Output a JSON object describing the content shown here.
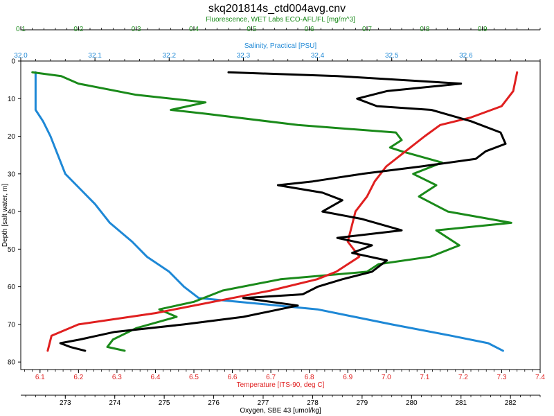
{
  "chart_data": {
    "type": "line",
    "title": "skq201814s_ctd004avg.cnv",
    "y_axis": {
      "label": "Depth [salt water, m]",
      "range": [
        0,
        82
      ],
      "ticks": [
        "0",
        "10",
        "20",
        "30",
        "40",
        "50",
        "60",
        "70",
        "80"
      ],
      "inverted": true
    },
    "axes": [
      {
        "key": "fluorescence",
        "label": "Fluorescence, WET Labs ECO-AFL/FL [mg/m^3]",
        "position": "top-outer",
        "color": "#1a8a1a",
        "range": [
          0.1,
          1.0
        ],
        "ticks": [
          "0.1",
          "0.2",
          "0.3",
          "0.4",
          "0.5",
          "0.6",
          "0.7",
          "0.8",
          "0.9"
        ]
      },
      {
        "key": "salinity",
        "label": "Salinity, Practical [PSU]",
        "position": "top-inner",
        "color": "#1e88d6",
        "range": [
          32.0,
          32.7
        ],
        "ticks": [
          "32.0",
          "32.1",
          "32.2",
          "32.3",
          "32.4",
          "32.5",
          "32.6"
        ]
      },
      {
        "key": "temperature",
        "label": "Temperature [ITS-90, deg C]",
        "position": "bottom-inner",
        "color": "#e02020",
        "range": [
          6.05,
          7.4
        ],
        "ticks": [
          "6.1",
          "6.2",
          "6.3",
          "6.4",
          "6.5",
          "6.6",
          "6.7",
          "6.8",
          "6.9",
          "7.0",
          "7.1",
          "7.2",
          "7.3",
          "7.4"
        ]
      },
      {
        "key": "oxygen",
        "label": "Oxygen, SBE 43 [umol/kg]",
        "position": "bottom-outer",
        "color": "#000000",
        "range": [
          272.1,
          282.6
        ],
        "ticks": [
          "273",
          "274",
          "275",
          "276",
          "277",
          "278",
          "279",
          "280",
          "281",
          "282"
        ]
      }
    ],
    "series": [
      {
        "axis": "salinity",
        "color": "#1e88d6",
        "points": [
          [
            32.02,
            3
          ],
          [
            32.02,
            8
          ],
          [
            32.02,
            13
          ],
          [
            32.03,
            16
          ],
          [
            32.04,
            20
          ],
          [
            32.05,
            25
          ],
          [
            32.06,
            30
          ],
          [
            32.08,
            34
          ],
          [
            32.1,
            38
          ],
          [
            32.12,
            43
          ],
          [
            32.15,
            48
          ],
          [
            32.17,
            52
          ],
          [
            32.2,
            56
          ],
          [
            32.22,
            60
          ],
          [
            32.24,
            63
          ],
          [
            32.32,
            64.5
          ],
          [
            32.4,
            66
          ],
          [
            32.5,
            70
          ],
          [
            32.58,
            73
          ],
          [
            32.63,
            75
          ],
          [
            32.65,
            77
          ]
        ]
      },
      {
        "axis": "fluorescence",
        "color": "#1a8a1a",
        "points": [
          [
            0.12,
            3
          ],
          [
            0.17,
            4
          ],
          [
            0.2,
            6
          ],
          [
            0.3,
            9
          ],
          [
            0.42,
            11
          ],
          [
            0.36,
            13
          ],
          [
            0.42,
            14
          ],
          [
            0.58,
            17
          ],
          [
            0.75,
            19
          ],
          [
            0.76,
            21
          ],
          [
            0.74,
            23
          ],
          [
            0.76,
            24
          ],
          [
            0.83,
            27
          ],
          [
            0.78,
            30
          ],
          [
            0.82,
            33
          ],
          [
            0.79,
            36
          ],
          [
            0.84,
            40
          ],
          [
            0.95,
            43
          ],
          [
            0.82,
            45
          ],
          [
            0.86,
            49
          ],
          [
            0.81,
            52
          ],
          [
            0.72,
            54
          ],
          [
            0.7,
            56
          ],
          [
            0.55,
            58
          ],
          [
            0.45,
            61
          ],
          [
            0.4,
            64
          ],
          [
            0.34,
            66
          ],
          [
            0.37,
            68
          ],
          [
            0.3,
            71
          ],
          [
            0.26,
            74
          ],
          [
            0.25,
            76
          ],
          [
            0.28,
            77
          ]
        ]
      },
      {
        "axis": "temperature",
        "color": "#e02020",
        "points": [
          [
            7.34,
            3
          ],
          [
            7.33,
            8
          ],
          [
            7.3,
            12
          ],
          [
            7.22,
            15
          ],
          [
            7.14,
            17
          ],
          [
            7.1,
            20
          ],
          [
            7.05,
            24
          ],
          [
            7.0,
            28
          ],
          [
            6.97,
            32
          ],
          [
            6.95,
            36
          ],
          [
            6.92,
            40
          ],
          [
            6.91,
            44
          ],
          [
            6.9,
            48
          ],
          [
            6.93,
            52
          ],
          [
            6.87,
            56
          ],
          [
            6.82,
            58
          ],
          [
            6.7,
            61
          ],
          [
            6.55,
            64
          ],
          [
            6.4,
            67
          ],
          [
            6.2,
            70
          ],
          [
            6.13,
            73
          ],
          [
            6.12,
            77
          ]
        ]
      },
      {
        "axis": "oxygen",
        "color": "#000000",
        "points": [
          [
            276.3,
            3
          ],
          [
            278.5,
            4
          ],
          [
            281,
            6
          ],
          [
            279.5,
            8
          ],
          [
            278.9,
            10
          ],
          [
            279.3,
            12
          ],
          [
            280.4,
            13
          ],
          [
            281.2,
            16
          ],
          [
            281.8,
            19
          ],
          [
            281.9,
            22
          ],
          [
            281.5,
            24
          ],
          [
            281.3,
            26
          ],
          [
            280.2,
            28
          ],
          [
            279,
            30
          ],
          [
            278,
            32
          ],
          [
            277.3,
            33
          ],
          [
            278.2,
            35
          ],
          [
            278.6,
            37
          ],
          [
            278.2,
            40
          ],
          [
            279,
            42
          ],
          [
            279.8,
            45
          ],
          [
            278.5,
            47
          ],
          [
            279.2,
            49
          ],
          [
            278.8,
            51
          ],
          [
            279.5,
            53
          ],
          [
            279.2,
            56
          ],
          [
            278.6,
            58
          ],
          [
            278.1,
            60
          ],
          [
            277.8,
            62
          ],
          [
            276.6,
            63
          ],
          [
            277.7,
            65
          ],
          [
            276.6,
            68
          ],
          [
            275.4,
            70
          ],
          [
            274,
            72
          ],
          [
            273.3,
            74
          ],
          [
            272.9,
            75
          ],
          [
            273.1,
            76
          ],
          [
            273.4,
            77
          ]
        ]
      }
    ]
  }
}
